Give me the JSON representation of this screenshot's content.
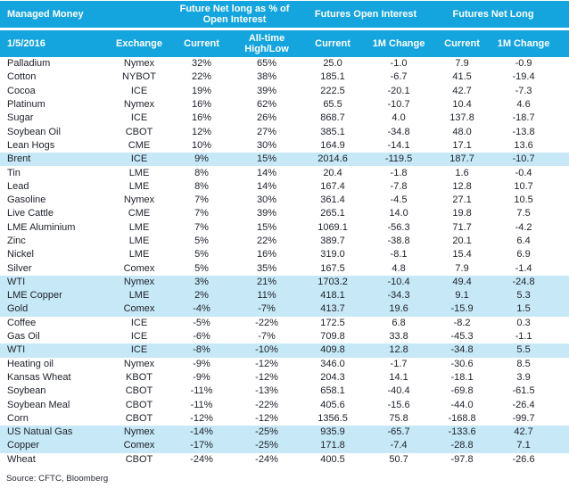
{
  "title": "Managed Money",
  "date": "1/5/2016",
  "colors": {
    "header_bg": "#14a4de",
    "header_text": "#ffffff",
    "highlight_row_bg": "#c6e8f7",
    "body_text": "#20242c"
  },
  "chart_data": {
    "type": "table",
    "title": "Managed Money",
    "group_headers": [
      "Managed Money",
      "Future Net long as % of Open Interest",
      "Futures Open Interest",
      "Futures Net Long"
    ],
    "columns": [
      "1/5/2016",
      "Exchange",
      "Current",
      "All-time High/Low",
      "Current",
      "1M Change",
      "Current",
      "1M Change"
    ],
    "rows": [
      {
        "cells": [
          "Palladium",
          "Nymex",
          "32%",
          "65%",
          "25.0",
          "-1.0",
          "7.9",
          "-0.9"
        ],
        "highlight": false
      },
      {
        "cells": [
          "Cotton",
          "NYBOT",
          "22%",
          "38%",
          "185.1",
          "-6.7",
          "41.5",
          "-19.4"
        ],
        "highlight": false
      },
      {
        "cells": [
          "Cocoa",
          "ICE",
          "19%",
          "39%",
          "222.5",
          "-20.1",
          "42.7",
          "-7.3"
        ],
        "highlight": false
      },
      {
        "cells": [
          "Platinum",
          "Nymex",
          "16%",
          "62%",
          "65.5",
          "-10.7",
          "10.4",
          "4.6"
        ],
        "highlight": false
      },
      {
        "cells": [
          "Sugar",
          "ICE",
          "16%",
          "26%",
          "868.7",
          "4.0",
          "137.8",
          "-18.7"
        ],
        "highlight": false
      },
      {
        "cells": [
          "Soybean Oil",
          "CBOT",
          "12%",
          "27%",
          "385.1",
          "-34.8",
          "48.0",
          "-13.8"
        ],
        "highlight": false
      },
      {
        "cells": [
          "Lean Hogs",
          "CME",
          "10%",
          "30%",
          "164.9",
          "-14.1",
          "17.1",
          "13.6"
        ],
        "highlight": false
      },
      {
        "cells": [
          "Brent",
          "ICE",
          "9%",
          "15%",
          "2014.6",
          "-119.5",
          "187.7",
          "-10.7"
        ],
        "highlight": true
      },
      {
        "cells": [
          "Tin",
          "LME",
          "8%",
          "14%",
          "20.4",
          "-1.8",
          "1.6",
          "-0.4"
        ],
        "highlight": false
      },
      {
        "cells": [
          "Lead",
          "LME",
          "8%",
          "14%",
          "167.4",
          "-7.8",
          "12.8",
          "10.7"
        ],
        "highlight": false
      },
      {
        "cells": [
          "Gasoline",
          "Nymex",
          "7%",
          "30%",
          "361.4",
          "-4.5",
          "27.1",
          "10.5"
        ],
        "highlight": false
      },
      {
        "cells": [
          "Live Cattle",
          "CME",
          "7%",
          "39%",
          "265.1",
          "14.0",
          "19.8",
          "7.5"
        ],
        "highlight": false
      },
      {
        "cells": [
          "LME Aluminium",
          "LME",
          "7%",
          "15%",
          "1069.1",
          "-56.3",
          "71.7",
          "-4.2"
        ],
        "highlight": false
      },
      {
        "cells": [
          "Zinc",
          "LME",
          "5%",
          "22%",
          "389.7",
          "-38.8",
          "20.1",
          "6.4"
        ],
        "highlight": false
      },
      {
        "cells": [
          "Nickel",
          "LME",
          "5%",
          "16%",
          "319.0",
          "-8.1",
          "15.4",
          "6.9"
        ],
        "highlight": false
      },
      {
        "cells": [
          "Silver",
          "Comex",
          "5%",
          "35%",
          "167.5",
          "4.8",
          "7.9",
          "-1.4"
        ],
        "highlight": false
      },
      {
        "cells": [
          "WTI",
          "Nymex",
          "3%",
          "21%",
          "1703.2",
          "-10.4",
          "49.4",
          "-24.8"
        ],
        "highlight": true
      },
      {
        "cells": [
          "LME Copper",
          "LME",
          "2%",
          "11%",
          "418.1",
          "-34.3",
          "9.1",
          "5.3"
        ],
        "highlight": true
      },
      {
        "cells": [
          "Gold",
          "Comex",
          "-4%",
          "-7%",
          "413.7",
          "19.6",
          "-15.9",
          "1.5"
        ],
        "highlight": true
      },
      {
        "cells": [
          "Coffee",
          "ICE",
          "-5%",
          "-22%",
          "172.5",
          "6.8",
          "-8.2",
          "0.3"
        ],
        "highlight": false
      },
      {
        "cells": [
          "Gas Oil",
          "ICE",
          "-6%",
          "-7%",
          "709.8",
          "33.8",
          "-45.3",
          "-1.1"
        ],
        "highlight": false
      },
      {
        "cells": [
          "WTI",
          "ICE",
          "-8%",
          "-10%",
          "409.8",
          "12.8",
          "-34.8",
          "5.5"
        ],
        "highlight": true
      },
      {
        "cells": [
          "Heating oil",
          "Nymex",
          "-9%",
          "-12%",
          "346.0",
          "-1.7",
          "-30.6",
          "8.5"
        ],
        "highlight": false
      },
      {
        "cells": [
          "Kansas Wheat",
          "KBOT",
          "-9%",
          "-12%",
          "204.3",
          "14.1",
          "-18.1",
          "3.9"
        ],
        "highlight": false
      },
      {
        "cells": [
          "Soybean",
          "CBOT",
          "-11%",
          "-13%",
          "658.1",
          "-40.4",
          "-69.8",
          "-61.5"
        ],
        "highlight": false
      },
      {
        "cells": [
          "Soybean Meal",
          "CBOT",
          "-11%",
          "-22%",
          "405.6",
          "-15.6",
          "-44.0",
          "-26.4"
        ],
        "highlight": false
      },
      {
        "cells": [
          "Corn",
          "CBOT",
          "-12%",
          "-12%",
          "1356.5",
          "75.8",
          "-168.8",
          "-99.7"
        ],
        "highlight": false
      },
      {
        "cells": [
          "US Natual Gas",
          "Nymex",
          "-14%",
          "-25%",
          "935.9",
          "-65.7",
          "-133.6",
          "42.7"
        ],
        "highlight": true
      },
      {
        "cells": [
          "Copper",
          "Comex",
          "-17%",
          "-25%",
          "171.8",
          "-7.4",
          "-28.8",
          "7.1"
        ],
        "highlight": true
      },
      {
        "cells": [
          "Wheat",
          "CBOT",
          "-24%",
          "-24%",
          "400.5",
          "50.7",
          "-97.8",
          "-26.6"
        ],
        "highlight": false
      }
    ]
  },
  "footer": {
    "source": "Source:  CFTC, Bloomberg"
  }
}
